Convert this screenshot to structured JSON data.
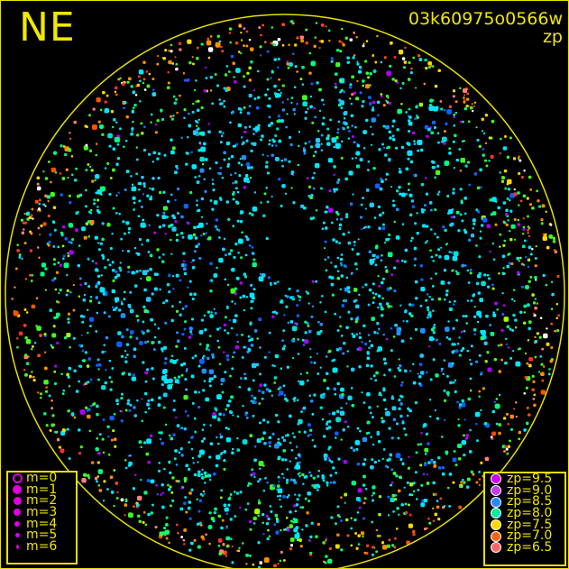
{
  "direction_label": "NE",
  "image_id": "03k60975o0566w",
  "mode_label": "zp",
  "magnitude_legend": [
    {
      "label": "m=0",
      "hollow": true
    },
    {
      "label": "m=1"
    },
    {
      "label": "m=2"
    },
    {
      "label": "m=3"
    },
    {
      "label": "m=4"
    },
    {
      "label": "m=5"
    },
    {
      "label": "m=6"
    }
  ],
  "zp_legend": [
    {
      "label": "zp=9.5",
      "color": "#d000f0"
    },
    {
      "label": "zp=9.0",
      "color": "#c040e8"
    },
    {
      "label": "zp=8.5",
      "color": "#2888ff"
    },
    {
      "label": "zp=8.0",
      "color": "#00f0a0"
    },
    {
      "label": "zp=7.5",
      "color": "#ffd800"
    },
    {
      "label": "zp=7.0",
      "color": "#ff6410"
    },
    {
      "label": "zp=6.5",
      "color": "#ff6868"
    }
  ],
  "horizon_color": "#e8e000"
}
